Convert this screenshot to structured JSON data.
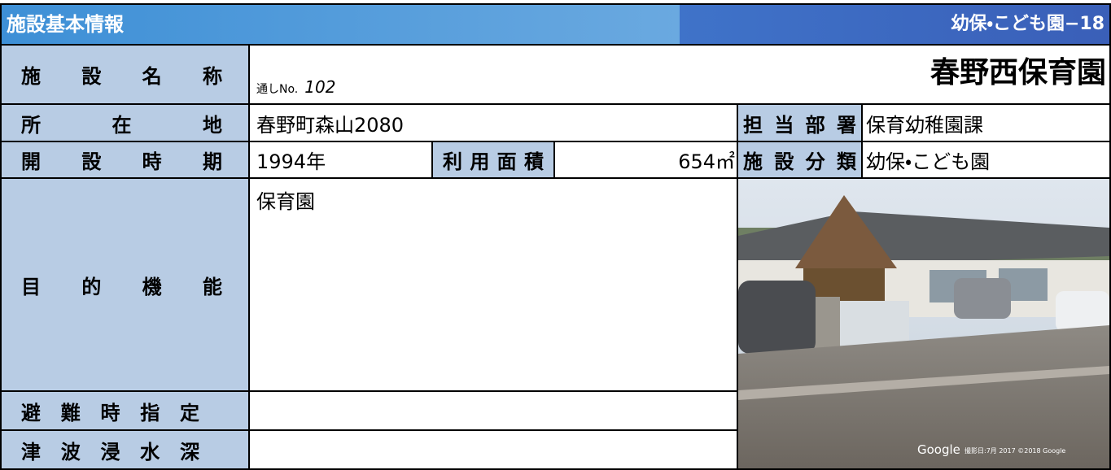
{
  "header": {
    "title": "施設基本情報",
    "code": "幼保・こども園−18"
  },
  "facility": {
    "name_label": "施 設 名 称",
    "serial_label": "通しNo.",
    "serial": "102",
    "name": "春野西保育園",
    "address_label": "所 在 地",
    "address": "春野町森山2080",
    "department_label": "担 当 部 署",
    "department": "保育幼稚園課",
    "opened_label": "開 設 時 期",
    "opened": "1994年",
    "area_label": "利 用 面 積",
    "area": "654㎡",
    "category_label": "施 設 分 類",
    "category": "幼保・こども園",
    "purpose_label": "目 的 機 能",
    "purpose": "保育園",
    "evacuation_label": "避 難 時 指 定",
    "evacuation": "",
    "tsunami_label": "津 波 浸 水 深",
    "tsunami": ""
  },
  "photo": {
    "brand": "Google",
    "caption": "撮影日:7月 2017 ©2018 Google"
  }
}
